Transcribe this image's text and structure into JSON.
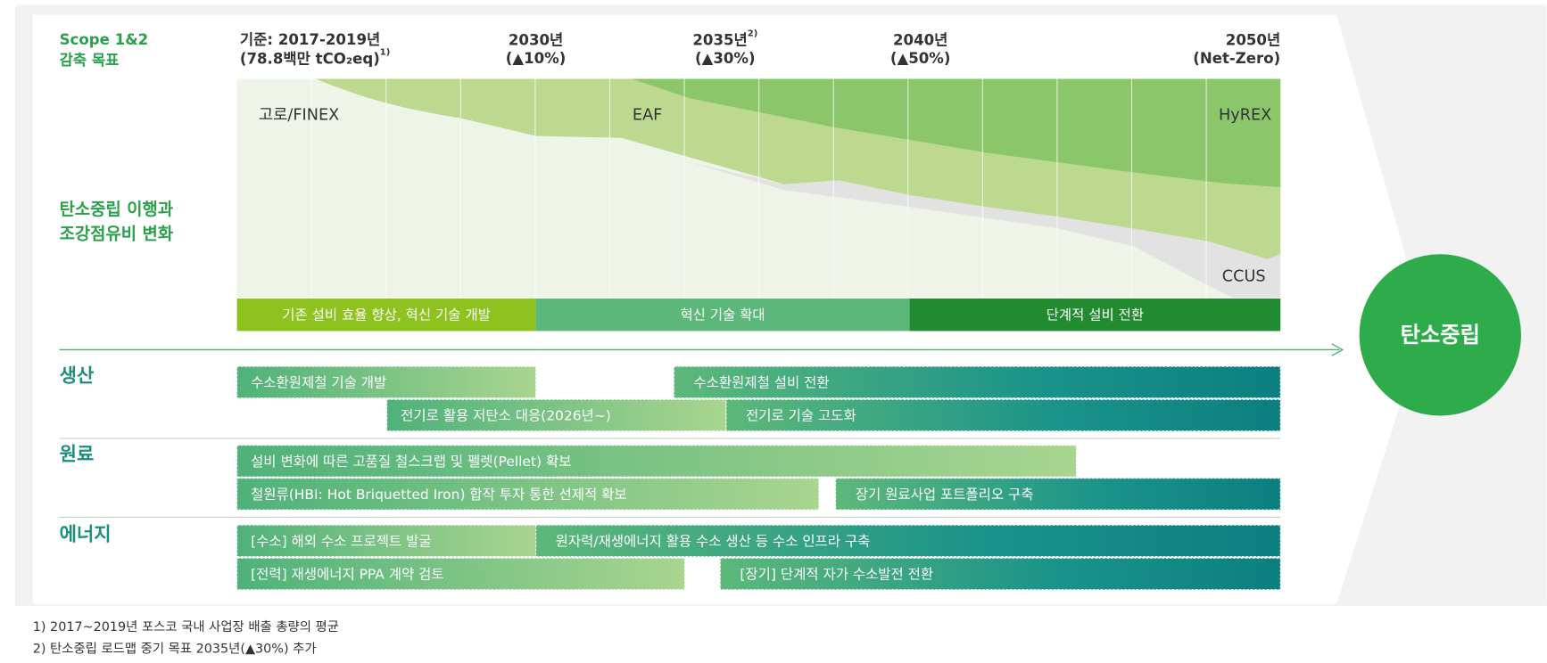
{
  "header": {
    "scope_label": [
      "Scope 1&2",
      "감축 목표"
    ],
    "baseline": {
      "label": "기준: 2017-2019년",
      "emissions": "(78.8백만 tCO₂eq)",
      "note": "1)"
    },
    "milestones": [
      {
        "year": "2030년",
        "target": "(▲10%)"
      },
      {
        "year": "2035년",
        "note": "2)",
        "target": "(▲30%)"
      },
      {
        "year": "2040년",
        "target": "(▲50%)"
      },
      {
        "year": "2050년",
        "target": "(Net-Zero)"
      }
    ]
  },
  "chart": {
    "label": [
      "탄소중립 이행과",
      "조강점유비 변화"
    ],
    "areas": [
      "고로/FINEX",
      "EAF",
      "HyREX",
      "CCUS"
    ],
    "phases": [
      "기존 설비 효율 향상, 혁신 기술 개발",
      "혁신 기술 확대",
      "단계적 설비 전환"
    ]
  },
  "goal": "탄소중립",
  "sections": [
    {
      "name": "생산",
      "rows": [
        [
          "수소환원제철 기술 개발",
          "수소환원제철 설비 전환"
        ],
        [
          "전기로 활용 저탄소 대응(2026년~)",
          "전기로 기술 고도화"
        ]
      ]
    },
    {
      "name": "원료",
      "rows": [
        [
          "설비 변화에 따른 고품질 철스크랩 및 펠렛(Pellet) 확보"
        ],
        [
          "철원류(HBI: Hot Briquetted Iron) 합작 투자 통한 선제적 확보",
          "장기 원료사업 포트폴리오 구축"
        ]
      ]
    },
    {
      "name": "에너지",
      "rows": [
        [
          "[수소] 해외 수소 프로젝트 발굴",
          "원자력/재생에너지 활용 수소 생산 등 수소 인프라 구축"
        ],
        [
          "[전력] 재생에너지 PPA 계약 검토",
          "[장기] 단계적 자가 수소발전 전환"
        ]
      ]
    }
  ],
  "footnotes": [
    "1) 2017~2019년 포스코 국내 사업장 배출 총량의 평균",
    "2) 탄소중립 로드맵 중기 목표 2035년(▲30%) 추가"
  ]
}
